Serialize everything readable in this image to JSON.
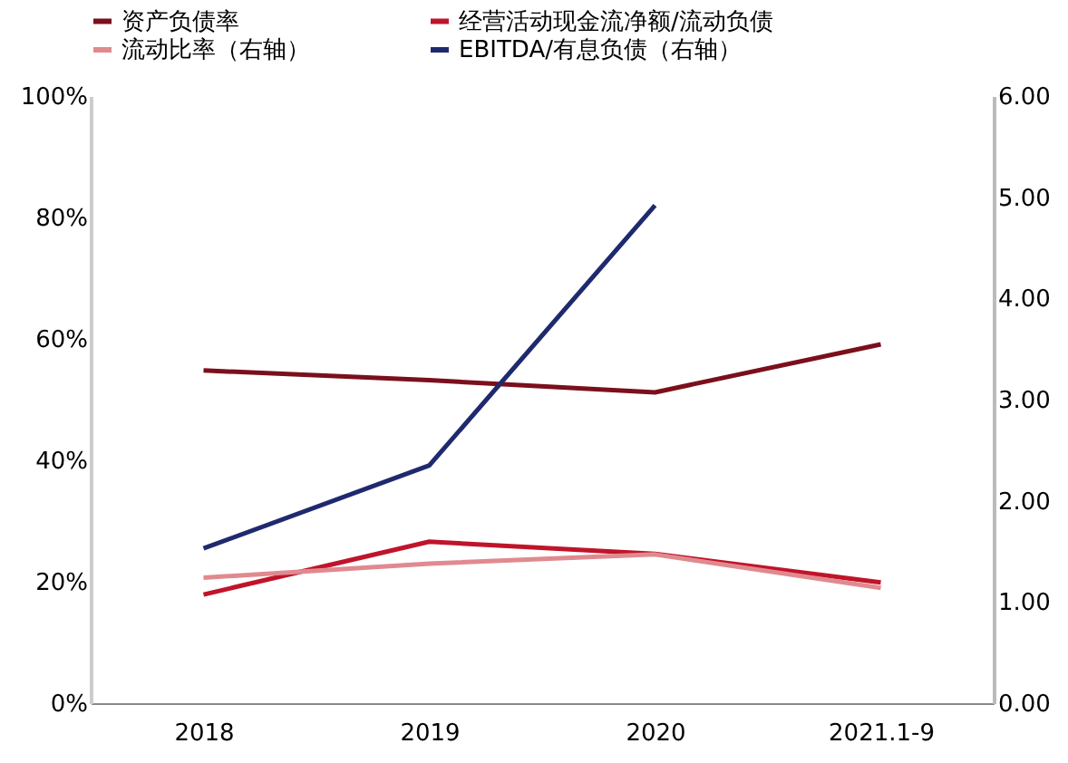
{
  "chart_data": {
    "type": "line",
    "categories": [
      "2018",
      "2019",
      "2020",
      "2021.1-9"
    ],
    "series": [
      {
        "name": "资产负债率",
        "color": "#7b0f1c",
        "values": [
          54.8,
          53.2,
          51.2,
          59.1
        ]
      },
      {
        "name": "经营活动现金流净额/流动负债",
        "color": "#c0142b",
        "values": [
          17.9,
          26.6,
          24.6,
          19.9
        ]
      },
      {
        "name": "流动比率（右轴）",
        "color": "#e08a8f",
        "axis": "y2",
        "values": [
          1.24,
          1.38,
          1.47,
          1.14
        ]
      },
      {
        "name": "EBITDA/有息负债（右轴）",
        "color": "#1f2a6e",
        "axis": "y2",
        "values": [
          1.53,
          2.35,
          4.92,
          null
        ]
      }
    ],
    "ylim": [
      0,
      100
    ],
    "yticks": [
      {
        "value": 0,
        "label": "0%"
      },
      {
        "value": 20,
        "label": "20%"
      },
      {
        "value": 40,
        "label": "40%"
      },
      {
        "value": 60,
        "label": "60%"
      },
      {
        "value": 80,
        "label": "80%"
      },
      {
        "value": 100,
        "label": "100%"
      }
    ],
    "y2lim": [
      0,
      6
    ],
    "y2ticks": [
      {
        "value": 0,
        "label": "0.00"
      },
      {
        "value": 1,
        "label": "1.00"
      },
      {
        "value": 2,
        "label": "2.00"
      },
      {
        "value": 3,
        "label": "3.00"
      },
      {
        "value": 4,
        "label": "4.00"
      },
      {
        "value": 5,
        "label": "5.00"
      },
      {
        "value": 6,
        "label": "6.00"
      }
    ],
    "grid": false,
    "legend": "top",
    "marker": "none",
    "line_style": "solid"
  }
}
